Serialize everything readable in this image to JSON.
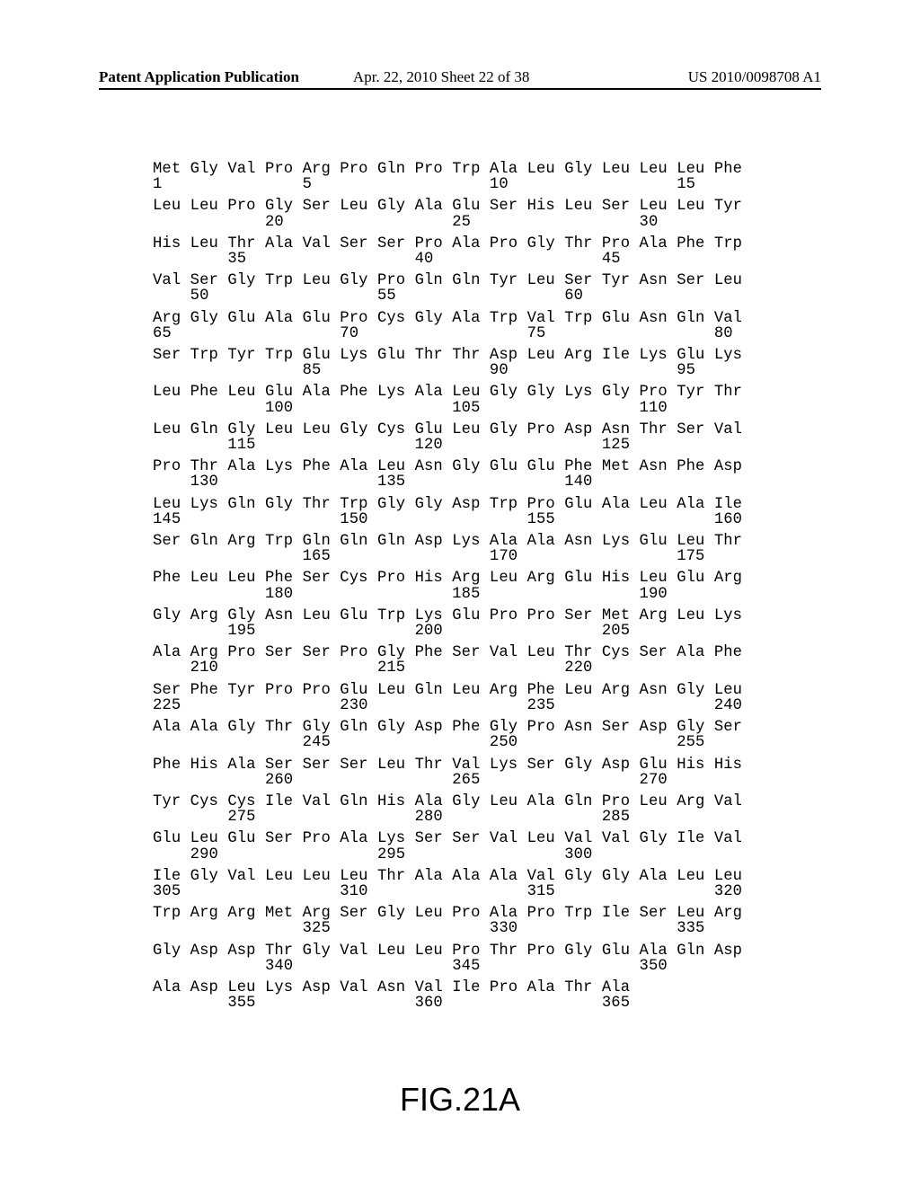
{
  "header": {
    "publication_type": "Patent Application Publication",
    "date_sheet": "Apr. 22, 2010  Sheet 22 of 38",
    "pub_number": "US 2010/0098708 A1"
  },
  "figure_label": "FIG.21A",
  "sequence": {
    "rows": [
      {
        "aa": "Met Gly Val Pro Arg Pro Gln Pro Trp Ala Leu Gly Leu Leu Leu Phe",
        "num": "1               5                   10                  15"
      },
      {
        "aa": "Leu Leu Pro Gly Ser Leu Gly Ala Glu Ser His Leu Ser Leu Leu Tyr",
        "num": "            20                  25                  30"
      },
      {
        "aa": "His Leu Thr Ala Val Ser Ser Pro Ala Pro Gly Thr Pro Ala Phe Trp",
        "num": "        35                  40                  45"
      },
      {
        "aa": "Val Ser Gly Trp Leu Gly Pro Gln Gln Tyr Leu Ser Tyr Asn Ser Leu",
        "num": "    50                  55                  60"
      },
      {
        "aa": "Arg Gly Glu Ala Glu Pro Cys Gly Ala Trp Val Trp Glu Asn Gln Val",
        "num": "65                  70                  75                  80"
      },
      {
        "aa": "Ser Trp Tyr Trp Glu Lys Glu Thr Thr Asp Leu Arg Ile Lys Glu Lys",
        "num": "                85                  90                  95"
      },
      {
        "aa": "Leu Phe Leu Glu Ala Phe Lys Ala Leu Gly Gly Lys Gly Pro Tyr Thr",
        "num": "            100                 105                 110"
      },
      {
        "aa": "Leu Gln Gly Leu Leu Gly Cys Glu Leu Gly Pro Asp Asn Thr Ser Val",
        "num": "        115                 120                 125"
      },
      {
        "aa": "Pro Thr Ala Lys Phe Ala Leu Asn Gly Glu Glu Phe Met Asn Phe Asp",
        "num": "    130                 135                 140"
      },
      {
        "aa": "Leu Lys Gln Gly Thr Trp Gly Gly Asp Trp Pro Glu Ala Leu Ala Ile",
        "num": "145                 150                 155                 160"
      },
      {
        "aa": "Ser Gln Arg Trp Gln Gln Gln Asp Lys Ala Ala Asn Lys Glu Leu Thr",
        "num": "                165                 170                 175"
      },
      {
        "aa": "Phe Leu Leu Phe Ser Cys Pro His Arg Leu Arg Glu His Leu Glu Arg",
        "num": "            180                 185                 190"
      },
      {
        "aa": "Gly Arg Gly Asn Leu Glu Trp Lys Glu Pro Pro Ser Met Arg Leu Lys",
        "num": "        195                 200                 205"
      },
      {
        "aa": "Ala Arg Pro Ser Ser Pro Gly Phe Ser Val Leu Thr Cys Ser Ala Phe",
        "num": "    210                 215                 220"
      },
      {
        "aa": "Ser Phe Tyr Pro Pro Glu Leu Gln Leu Arg Phe Leu Arg Asn Gly Leu",
        "num": "225                 230                 235                 240"
      },
      {
        "aa": "Ala Ala Gly Thr Gly Gln Gly Asp Phe Gly Pro Asn Ser Asp Gly Ser",
        "num": "                245                 250                 255"
      },
      {
        "aa": "Phe His Ala Ser Ser Ser Leu Thr Val Lys Ser Gly Asp Glu His His",
        "num": "            260                 265                 270"
      },
      {
        "aa": "Tyr Cys Cys Ile Val Gln His Ala Gly Leu Ala Gln Pro Leu Arg Val",
        "num": "        275                 280                 285"
      },
      {
        "aa": "Glu Leu Glu Ser Pro Ala Lys Ser Ser Val Leu Val Val Gly Ile Val",
        "num": "    290                 295                 300"
      },
      {
        "aa": "Ile Gly Val Leu Leu Leu Thr Ala Ala Ala Val Gly Gly Ala Leu Leu",
        "num": "305                 310                 315                 320"
      },
      {
        "aa": "Trp Arg Arg Met Arg Ser Gly Leu Pro Ala Pro Trp Ile Ser Leu Arg",
        "num": "                325                 330                 335"
      },
      {
        "aa": "Gly Asp Asp Thr Gly Val Leu Leu Pro Thr Pro Gly Glu Ala Gln Asp",
        "num": "            340                 345                 350"
      },
      {
        "aa": "Ala Asp Leu Lys Asp Val Asn Val Ile Pro Ala Thr Ala",
        "num": "        355                 360                 365"
      }
    ]
  }
}
